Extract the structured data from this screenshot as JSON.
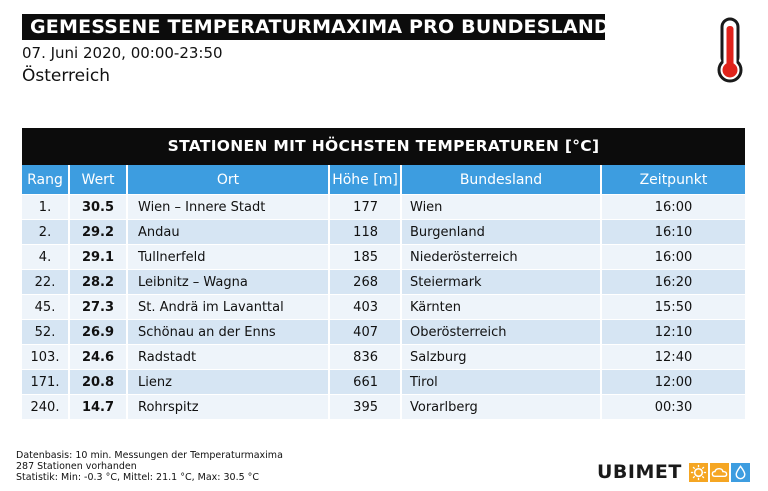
{
  "header": {
    "title": "GEMESSENE TEMPERATURMAXIMA PRO BUNDESLAND",
    "subtitle": "07. Juni 2020, 00:00-23:50",
    "region": "Österreich"
  },
  "table": {
    "title": "STATIONEN MIT HÖCHSTEN TEMPERATUREN [°C]",
    "columns": [
      "Rang",
      "Wert",
      "Ort",
      "Höhe [m]",
      "Bundesland",
      "Zeitpunkt"
    ],
    "rows": [
      {
        "rang": "1.",
        "wert": "30.5",
        "ort": "Wien – Innere Stadt",
        "hoehe": "177",
        "bundesland": "Wien",
        "zeit": "16:00"
      },
      {
        "rang": "2.",
        "wert": "29.2",
        "ort": "Andau",
        "hoehe": "118",
        "bundesland": "Burgenland",
        "zeit": "16:10"
      },
      {
        "rang": "4.",
        "wert": "29.1",
        "ort": "Tullnerfeld",
        "hoehe": "185",
        "bundesland": "Niederösterreich",
        "zeit": "16:00"
      },
      {
        "rang": "22.",
        "wert": "28.2",
        "ort": "Leibnitz – Wagna",
        "hoehe": "268",
        "bundesland": "Steiermark",
        "zeit": "16:20"
      },
      {
        "rang": "45.",
        "wert": "27.3",
        "ort": "St. Andrä im Lavanttal",
        "hoehe": "403",
        "bundesland": "Kärnten",
        "zeit": "15:50"
      },
      {
        "rang": "52.",
        "wert": "26.9",
        "ort": "Schönau an der Enns",
        "hoehe": "407",
        "bundesland": "Oberösterreich",
        "zeit": "12:10"
      },
      {
        "rang": "103.",
        "wert": "24.6",
        "ort": "Radstadt",
        "hoehe": "836",
        "bundesland": "Salzburg",
        "zeit": "12:40"
      },
      {
        "rang": "171.",
        "wert": "20.8",
        "ort": "Lienz",
        "hoehe": "661",
        "bundesland": "Tirol",
        "zeit": "12:00"
      },
      {
        "rang": "240.",
        "wert": "14.7",
        "ort": "Rohrspitz",
        "hoehe": "395",
        "bundesland": "Vorarlberg",
        "zeit": "00:30"
      }
    ]
  },
  "footer": {
    "line1": "Datenbasis: 10 min. Messungen der Temperaturmaxima",
    "line2": "287 Stationen vorhanden",
    "line3": "Statistik: Min: -0.3 °C, Mittel: 21.1 °C, Max: 30.5 °C"
  },
  "logo": {
    "text": "UBIMET",
    "icons": [
      "sun-icon",
      "cloud-icon",
      "drop-icon"
    ],
    "colors": {
      "sun": "#f5a623",
      "cloud": "#f5a623",
      "drop": "#3d9de0"
    }
  },
  "icons": {
    "thermometer": "thermometer-icon"
  },
  "colors": {
    "header_bg": "#0c0c0c",
    "column_header_bg": "#3d9de0",
    "row_light": "#eef4fa",
    "row_dark": "#d6e5f3",
    "thermometer_red": "#e0231b"
  }
}
